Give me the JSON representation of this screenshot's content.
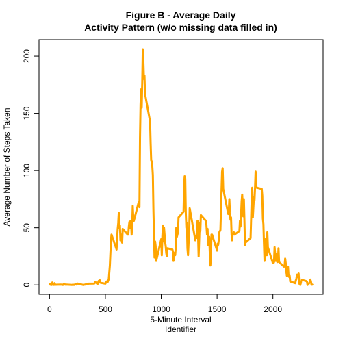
{
  "chart_data": {
    "type": "line",
    "title": [
      "Figure B - Average Daily",
      "Activity Pattern (w/o missing data filled in)"
    ],
    "xlabel": [
      "5-Minute Interval",
      "Identifier"
    ],
    "ylabel": "Average Number of Steps Taken",
    "color": "#FFA500",
    "xlim": [
      -94.2,
      2449.2
    ],
    "xticks": [
      0,
      500,
      1000,
      1500,
      2000
    ],
    "ylim": [
      -8.25,
      214.4
    ],
    "yticks": [
      0,
      50,
      100,
      150,
      200
    ],
    "x": [
      0,
      5,
      10,
      15,
      20,
      25,
      30,
      35,
      40,
      45,
      50,
      55,
      100,
      110,
      120,
      130,
      140,
      150,
      200,
      210,
      220,
      230,
      240,
      250,
      300,
      310,
      320,
      330,
      340,
      350,
      400,
      410,
      420,
      430,
      440,
      450,
      455,
      500,
      510,
      520,
      530,
      540,
      550,
      555,
      600,
      610,
      615,
      620,
      625,
      630,
      635,
      640,
      645,
      650,
      655,
      700,
      705,
      710,
      715,
      720,
      725,
      730,
      735,
      740,
      745,
      750,
      755,
      800,
      805,
      810,
      815,
      820,
      825,
      830,
      835,
      840,
      845,
      850,
      855,
      900,
      905,
      910,
      915,
      920,
      925,
      930,
      935,
      940,
      945,
      950,
      955,
      1000,
      1005,
      1010,
      1015,
      1020,
      1025,
      1030,
      1035,
      1040,
      1045,
      1050,
      1055,
      1100,
      1105,
      1110,
      1115,
      1120,
      1125,
      1130,
      1135,
      1140,
      1145,
      1150,
      1155,
      1200,
      1205,
      1210,
      1215,
      1220,
      1225,
      1230,
      1235,
      1240,
      1245,
      1250,
      1255,
      1300,
      1305,
      1310,
      1315,
      1320,
      1325,
      1330,
      1335,
      1340,
      1345,
      1350,
      1355,
      1400,
      1405,
      1410,
      1415,
      1420,
      1425,
      1430,
      1435,
      1440,
      1445,
      1450,
      1455,
      1500,
      1505,
      1510,
      1515,
      1520,
      1525,
      1530,
      1535,
      1540,
      1545,
      1550,
      1555,
      1600,
      1605,
      1610,
      1615,
      1620,
      1625,
      1630,
      1635,
      1640,
      1645,
      1650,
      1655,
      1700,
      1705,
      1710,
      1715,
      1720,
      1725,
      1730,
      1735,
      1740,
      1745,
      1750,
      1755,
      1800,
      1805,
      1810,
      1815,
      1820,
      1825,
      1830,
      1835,
      1840,
      1845,
      1850,
      1855,
      1900,
      1905,
      1910,
      1915,
      1920,
      1925,
      1930,
      1935,
      1940,
      1945,
      1950,
      1955,
      2000,
      2005,
      2010,
      2015,
      2020,
      2025,
      2030,
      2035,
      2040,
      2045,
      2050,
      2055,
      2100,
      2105,
      2110,
      2115,
      2120,
      2125,
      2130,
      2135,
      2140,
      2145,
      2150,
      2155,
      2200,
      2205,
      2210,
      2215,
      2220,
      2225,
      2230,
      2235,
      2240,
      2245,
      2250,
      2255,
      2300,
      2305,
      2310,
      2315,
      2320,
      2325,
      2330,
      2335,
      2340,
      2345,
      2350,
      2355
    ],
    "values": [
      1.7,
      0.3,
      0.1,
      0.2,
      0,
      2.1,
      0.5,
      0.9,
      0,
      1.5,
      0.3,
      0.1,
      0.3,
      0.2,
      0,
      1.1,
      0.2,
      0.3,
      0,
      0.2,
      0,
      0.5,
      0.3,
      1.2,
      0,
      0.2,
      0.3,
      0.8,
      0.4,
      1.1,
      1.2,
      2.6,
      1.6,
      0.7,
      3.5,
      4.1,
      1.9,
      1.1,
      3,
      2.5,
      5,
      17,
      39,
      44,
      31,
      49,
      54,
      63,
      50,
      52,
      39,
      44,
      44,
      37,
      49,
      44,
      44,
      51,
      55,
      50,
      56,
      56,
      44,
      52,
      69,
      58,
      56,
      73,
      68,
      129,
      158,
      171,
      155,
      177,
      206,
      196,
      180,
      183,
      167,
      143,
      124,
      109,
      108,
      104,
      96,
      66,
      45,
      24,
      38,
      34,
      21,
      40,
      26,
      42,
      52,
      38,
      50,
      44,
      37,
      34,
      28,
      25,
      32,
      31,
      29,
      21,
      25,
      28,
      26,
      33,
      50,
      42,
      44,
      46,
      59,
      64,
      88,
      95,
      93,
      63,
      50,
      54,
      32,
      26,
      37,
      45,
      67,
      42,
      39,
      43,
      41,
      46,
      56,
      43,
      25,
      40,
      54,
      47,
      61,
      56,
      52,
      44,
      49,
      35,
      38,
      42,
      28,
      17,
      26,
      44,
      44,
      30,
      36,
      35,
      39,
      46,
      47,
      48,
      65,
      83,
      99,
      102,
      84,
      62,
      64,
      75,
      63,
      57,
      59,
      44,
      39,
      45,
      45,
      46,
      44,
      47,
      56,
      51,
      61,
      73,
      79,
      69,
      60,
      75,
      56,
      35,
      37,
      41,
      58,
      75,
      85,
      59,
      68,
      77,
      74,
      85,
      99,
      87,
      85,
      84,
      78,
      58,
      53,
      36,
      21,
      27,
      40,
      30,
      26,
      46,
      33,
      19,
      19,
      20,
      33,
      27,
      21,
      27,
      21,
      20,
      21,
      32,
      20,
      16,
      17,
      23,
      19,
      12,
      8,
      15,
      16,
      8,
      7,
      8,
      3,
      1.5,
      4,
      5,
      9,
      7,
      9,
      10,
      2,
      0.3,
      0.1,
      1.6,
      4.6,
      3.3,
      2.8,
      0,
      0.8,
      1,
      1.6,
      2.6,
      4.7,
      3.3,
      0.6,
      0.2,
      1.1
    ]
  }
}
